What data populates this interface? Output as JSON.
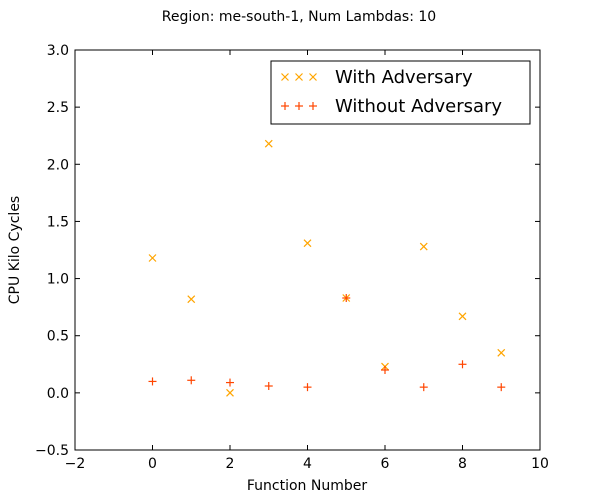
{
  "chart_data": {
    "type": "scatter",
    "title": "Region: me-south-1, Num Lambdas: 10",
    "xlabel": "Function Number",
    "ylabel": "CPU Kilo Cycles",
    "xlim": [
      -2,
      10
    ],
    "ylim": [
      -0.5,
      3.0
    ],
    "xticks": [
      "−2",
      "0",
      "2",
      "4",
      "6",
      "8",
      "10"
    ],
    "yticks": [
      "−0.5",
      "0.0",
      "0.5",
      "1.0",
      "1.5",
      "2.0",
      "2.5",
      "3.0"
    ],
    "grid": false,
    "legend_position": "top-right",
    "series": [
      {
        "name": "With Adversary",
        "marker": "x",
        "color": "#ffa500",
        "x": [
          0,
          1,
          2,
          3,
          4,
          5,
          6,
          7,
          8,
          9
        ],
        "y": [
          1.18,
          0.82,
          0.0,
          2.18,
          1.31,
          0.83,
          0.23,
          1.28,
          0.67,
          0.35
        ]
      },
      {
        "name": "Without Adversary",
        "marker": "+",
        "color": "#ff4500",
        "x": [
          0,
          1,
          2,
          3,
          4,
          5,
          6,
          7,
          8,
          9
        ],
        "y": [
          0.1,
          0.11,
          0.09,
          0.06,
          0.05,
          0.83,
          0.2,
          0.05,
          0.25,
          0.05
        ]
      }
    ]
  }
}
